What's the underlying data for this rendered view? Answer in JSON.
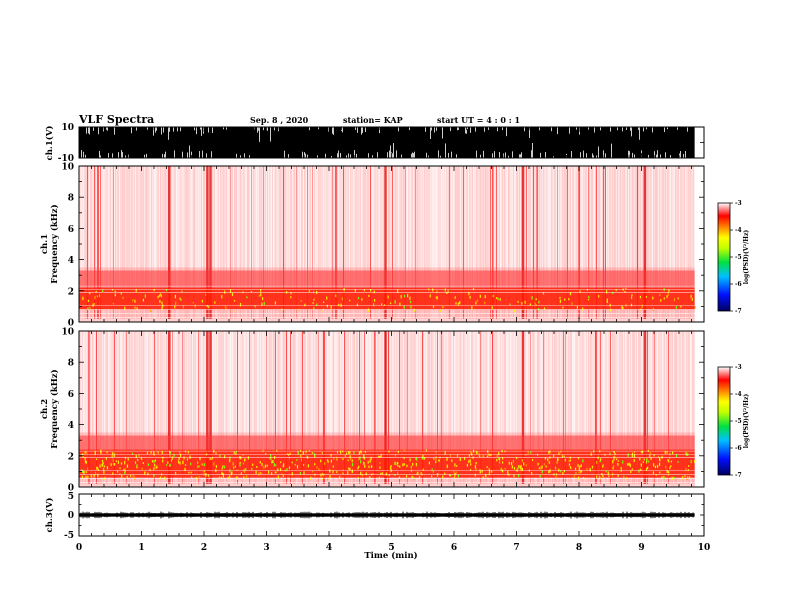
{
  "header": {
    "title": "VLF Spectra",
    "date": "Sep. 8  , 2020",
    "station": "station= KAP",
    "start": "start  UT =   4 : 0  : 1"
  },
  "chart_data": [
    {
      "type": "line",
      "panel": "ch1-waveform",
      "ylabel": "ch.1(V)",
      "ylim": [
        -10,
        10
      ],
      "y_tick_labels": [
        "10",
        "-10"
      ],
      "xlim": [
        0,
        10
      ],
      "x_range_data": [
        0,
        9.85
      ],
      "fill_color": "#000000",
      "description_of_signal": "dense waveform nearly saturating +/-10 V"
    },
    {
      "type": "heatmap",
      "panel": "ch1-spectrogram",
      "ylabel": "ch.1\nFrequency  (kHz)",
      "ylim": [
        0,
        10
      ],
      "y_tick_labels": [
        "0",
        "2",
        "4",
        "6",
        "8",
        "10"
      ],
      "xlim": [
        0,
        10
      ],
      "x_range_data": [
        0,
        9.85
      ],
      "colorbar": {
        "label": "log(PSD)(V²/Hz)",
        "range": [
          -7,
          -3
        ],
        "tick_labels": [
          "-3",
          "-4",
          "-5",
          "-6",
          "-7"
        ]
      },
      "bright_band_khz": [
        0.8,
        2.2
      ],
      "vertical_bursts_min": [
        1.44,
        2.05,
        2.1,
        4.9,
        7.1,
        9.05
      ]
    },
    {
      "type": "heatmap",
      "panel": "ch2-spectrogram",
      "ylabel": "ch.2\nFrequency  (kHz)",
      "ylim": [
        0,
        10
      ],
      "y_tick_labels": [
        "0",
        "2",
        "4",
        "6",
        "8",
        "10"
      ],
      "xlim": [
        0,
        10
      ],
      "x_range_data": [
        0,
        9.85
      ],
      "colorbar": {
        "label": "log(PSD)(V²/Hz)",
        "range": [
          -7,
          -3
        ],
        "tick_labels": [
          "-3",
          "-4",
          "-5",
          "-6",
          "-7"
        ]
      },
      "bright_band_khz": [
        0.6,
        2.4
      ],
      "vertical_bursts_min": [
        1.44,
        2.05,
        2.1,
        4.9,
        7.1,
        9.05
      ]
    },
    {
      "type": "line",
      "panel": "ch3-waveform",
      "ylabel": "ch.3(V)",
      "ylim": [
        -5,
        5
      ],
      "y_tick_labels": [
        "5",
        "0",
        "-5"
      ],
      "xlim": [
        0,
        10
      ],
      "x_range_data": [
        0,
        9.85
      ],
      "signal_band_v": [
        -0.4,
        0.4
      ],
      "fill_color": "#000000"
    }
  ],
  "x_axis": {
    "label": "Time  (min)",
    "tick_labels": [
      "0",
      "1",
      "2",
      "3",
      "4",
      "5",
      "6",
      "7",
      "8",
      "9",
      "10"
    ],
    "range": [
      0,
      10
    ]
  },
  "colors": {
    "low": "#000080",
    "mid_low": "#0060ff",
    "mid": "#00e060",
    "mid_high": "#ffff00",
    "high": "#ff0000",
    "max": "#ffffff"
  }
}
